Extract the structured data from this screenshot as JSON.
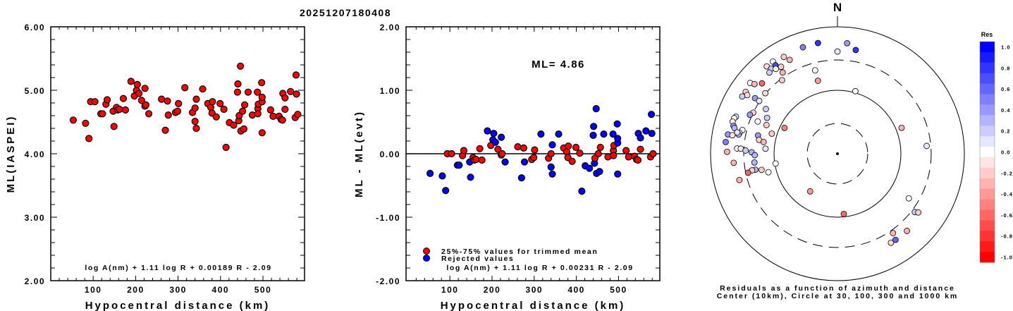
{
  "title": "20251207180408",
  "chart_data": [
    {
      "type": "scatter",
      "panel": "magnitude-vs-distance",
      "xlabel": "Hypocentral distance (km)",
      "ylabel": "ML(IASPEI)",
      "xlim": [
        0,
        598
      ],
      "ylim": [
        2,
        6
      ],
      "xticks": [
        100,
        200,
        300,
        400,
        500
      ],
      "yticks": [
        "2.00",
        "3.00",
        "4.00",
        "5.00",
        "6.00"
      ],
      "formula": "log A(nm) + 1.11 log R + 0.00189 R - 2.09",
      "marker_color": "#ff0000",
      "points": [
        [
          53,
          4.53
        ],
        [
          82,
          4.48
        ],
        [
          90,
          4.24
        ],
        [
          94,
          4.82
        ],
        [
          104,
          4.82
        ],
        [
          118,
          4.63
        ],
        [
          122,
          4.63
        ],
        [
          130,
          4.78
        ],
        [
          133,
          4.85
        ],
        [
          147,
          4.67
        ],
        [
          149,
          4.43
        ],
        [
          155,
          4.73
        ],
        [
          158,
          4.69
        ],
        [
          162,
          4.7
        ],
        [
          171,
          4.87
        ],
        [
          176,
          4.69
        ],
        [
          189,
          5.14
        ],
        [
          197,
          4.91
        ],
        [
          202,
          5.0
        ],
        [
          204,
          5.09
        ],
        [
          208,
          4.95
        ],
        [
          214,
          4.84
        ],
        [
          222,
          5.03
        ],
        [
          222,
          4.75
        ],
        [
          224,
          4.77
        ],
        [
          231,
          4.63
        ],
        [
          261,
          4.86
        ],
        [
          270,
          4.37
        ],
        [
          275,
          4.83
        ],
        [
          277,
          4.61
        ],
        [
          294,
          4.65
        ],
        [
          299,
          4.67
        ],
        [
          301,
          4.79
        ],
        [
          316,
          5.04
        ],
        [
          334,
          4.65
        ],
        [
          340,
          4.72
        ],
        [
          340,
          4.51
        ],
        [
          343,
          4.86
        ],
        [
          343,
          4.4
        ],
        [
          358,
          5.02
        ],
        [
          370,
          4.79
        ],
        [
          377,
          4.73
        ],
        [
          381,
          4.82
        ],
        [
          380,
          4.64
        ],
        [
          390,
          4.58
        ],
        [
          399,
          4.79
        ],
        [
          408,
          4.7
        ],
        [
          413,
          4.1
        ],
        [
          421,
          4.49
        ],
        [
          431,
          4.45
        ],
        [
          440,
          4.97
        ],
        [
          441,
          5.1
        ],
        [
          443,
          4.52
        ],
        [
          444,
          4.6
        ],
        [
          447,
          5.38
        ],
        [
          448,
          4.36
        ],
        [
          452,
          4.67
        ],
        [
          455,
          4.39
        ],
        [
          457,
          4.77
        ],
        [
          465,
          4.97
        ],
        [
          475,
          4.61
        ],
        [
          487,
          4.97
        ],
        [
          488,
          4.71
        ],
        [
          489,
          4.78
        ],
        [
          488,
          4.63
        ],
        [
          497,
          5.12
        ],
        [
          498,
          4.82
        ],
        [
          498,
          4.89
        ],
        [
          498,
          4.33
        ],
        [
          518,
          4.69
        ],
        [
          524,
          4.59
        ],
        [
          538,
          4.59
        ],
        [
          543,
          4.54
        ],
        [
          546,
          4.53
        ],
        [
          547,
          4.95
        ],
        [
          552,
          4.7
        ],
        [
          552,
          4.88
        ],
        [
          565,
          4.98
        ],
        [
          576,
          4.57
        ],
        [
          578,
          5.24
        ],
        [
          579,
          4.94
        ],
        [
          582,
          4.62
        ]
      ]
    },
    {
      "type": "scatter",
      "panel": "residual-vs-distance",
      "xlabel": "Hypocentral distance (km)",
      "ylabel": "ML - ML(evt)",
      "xlim": [
        -4,
        598
      ],
      "ylim": [
        -2,
        2
      ],
      "xticks": [
        100,
        200,
        300,
        400,
        500
      ],
      "yticks": [
        "-2.00",
        "-1.00",
        "0.00",
        "1.00",
        "2.00"
      ],
      "annotation": "ML= 4.86",
      "formula": "log A(nm) + 1.11 log R + 0.00231 R - 2.09",
      "legend": [
        {
          "label": "25%-75% values for trimmed mean",
          "color": "#ff0000"
        },
        {
          "label": "Rejected values",
          "color": "#0000ff"
        }
      ],
      "legend_position": "bottom-left",
      "points_note": "[distance_km, residual, rejected(1) or used(0)]",
      "points": [
        [
          53,
          -0.31,
          1
        ],
        [
          82,
          -0.35,
          1
        ],
        [
          90,
          -0.58,
          1
        ],
        [
          94,
          0.0,
          0
        ],
        [
          104,
          0.0,
          0
        ],
        [
          118,
          -0.18,
          1
        ],
        [
          122,
          -0.18,
          1
        ],
        [
          130,
          -0.03,
          0
        ],
        [
          133,
          0.05,
          0
        ],
        [
          147,
          -0.13,
          1
        ],
        [
          149,
          -0.37,
          1
        ],
        [
          155,
          -0.06,
          0
        ],
        [
          158,
          -0.1,
          0
        ],
        [
          162,
          -0.09,
          0
        ],
        [
          171,
          0.08,
          0
        ],
        [
          176,
          -0.1,
          0
        ],
        [
          189,
          0.36,
          1
        ],
        [
          197,
          0.13,
          0
        ],
        [
          202,
          0.22,
          1
        ],
        [
          204,
          0.32,
          1
        ],
        [
          208,
          0.18,
          1
        ],
        [
          214,
          0.07,
          0
        ],
        [
          222,
          0.26,
          1
        ],
        [
          222,
          -0.02,
          0
        ],
        [
          224,
          0.0,
          0
        ],
        [
          231,
          -0.13,
          1
        ],
        [
          261,
          0.11,
          0
        ],
        [
          270,
          -0.38,
          1
        ],
        [
          275,
          0.09,
          0
        ],
        [
          277,
          -0.13,
          1
        ],
        [
          294,
          -0.09,
          0
        ],
        [
          299,
          -0.06,
          0
        ],
        [
          301,
          0.06,
          0
        ],
        [
          316,
          0.31,
          1
        ],
        [
          334,
          -0.07,
          0
        ],
        [
          340,
          0.0,
          0
        ],
        [
          340,
          -0.21,
          1
        ],
        [
          343,
          0.14,
          1
        ],
        [
          343,
          -0.32,
          1
        ],
        [
          358,
          0.31,
          1
        ],
        [
          370,
          0.09,
          0
        ],
        [
          377,
          0.03,
          0
        ],
        [
          381,
          0.12,
          0
        ],
        [
          380,
          -0.06,
          0
        ],
        [
          390,
          -0.12,
          0
        ],
        [
          399,
          0.1,
          0
        ],
        [
          408,
          0.01,
          0
        ],
        [
          413,
          -0.59,
          1
        ],
        [
          421,
          -0.19,
          1
        ],
        [
          431,
          -0.23,
          1
        ],
        [
          440,
          0.29,
          1
        ],
        [
          441,
          0.43,
          1
        ],
        [
          443,
          -0.15,
          1
        ],
        [
          444,
          -0.07,
          0
        ],
        [
          447,
          0.71,
          1
        ],
        [
          448,
          -0.31,
          1
        ],
        [
          452,
          0.0,
          0
        ],
        [
          455,
          -0.28,
          1
        ],
        [
          457,
          0.1,
          0
        ],
        [
          465,
          0.31,
          1
        ],
        [
          475,
          -0.05,
          0
        ],
        [
          487,
          0.31,
          1
        ],
        [
          488,
          0.05,
          0
        ],
        [
          489,
          0.13,
          0
        ],
        [
          488,
          -0.03,
          0
        ],
        [
          497,
          0.47,
          1
        ],
        [
          498,
          0.17,
          1
        ],
        [
          498,
          0.24,
          1
        ],
        [
          498,
          -0.32,
          1
        ],
        [
          518,
          0.05,
          0
        ],
        [
          524,
          -0.05,
          0
        ],
        [
          538,
          -0.04,
          0
        ],
        [
          543,
          -0.09,
          0
        ],
        [
          546,
          -0.1,
          0
        ],
        [
          547,
          0.32,
          1
        ],
        [
          552,
          0.07,
          0
        ],
        [
          552,
          0.25,
          1
        ],
        [
          565,
          0.36,
          1
        ],
        [
          576,
          -0.05,
          0
        ],
        [
          578,
          0.62,
          1
        ],
        [
          579,
          0.32,
          1
        ],
        [
          582,
          0.0,
          0
        ]
      ]
    },
    {
      "type": "scatter",
      "panel": "residual-azimuth-polar",
      "north_label": "N",
      "caption_line1": "Residuals as a function of azimuth and distance",
      "caption_line2": "Center (10km), Circle at 30, 100, 300 and 1000 km",
      "center_km": 10,
      "circles_km": [
        30,
        100,
        300,
        1000
      ],
      "colorbar": {
        "title": "Res",
        "range": [
          -1.0,
          1.0
        ],
        "labels": [
          "1.0",
          "0.8",
          "0.6",
          "0.4",
          "0.2",
          "0.0",
          "-0.2",
          "-0.4",
          "-0.6",
          "-0.8",
          "-1.0"
        ],
        "positive_color": "#0000ff",
        "negative_color": "#ff0000"
      },
      "points_note": "[azimuth_deg, distance_km, residual]",
      "points": [
        [
          342,
          580,
          0.5
        ],
        [
          350,
          590,
          0.8
        ],
        [
          0,
          408,
          0.1
        ],
        [
          5,
          560,
          0.4
        ],
        [
          10,
          457,
          0.8
        ],
        [
          331,
          555,
          -0.2
        ],
        [
          333,
          457,
          -0.3
        ],
        [
          325,
          593,
          0
        ],
        [
          325,
          505,
          0.7
        ],
        [
          321,
          590,
          -0.15
        ],
        [
          322,
          500,
          0.2
        ],
        [
          324,
          450,
          0
        ],
        [
          327,
          430,
          -0.2
        ],
        [
          320,
          468,
          0.2
        ],
        [
          326,
          350,
          -0.3
        ],
        [
          323,
          283,
          -0.2
        ],
        [
          345,
          229,
          0
        ],
        [
          345,
          155,
          -0.4
        ],
        [
          309,
          590,
          0
        ],
        [
          310,
          510,
          -0.3
        ],
        [
          313,
          423,
          -0.6
        ],
        [
          304,
          555,
          -0.2
        ],
        [
          303,
          497,
          -0.15
        ],
        [
          301,
          565,
          0.2
        ],
        [
          304,
          369,
          0.4
        ],
        [
          304,
          308,
          0.1
        ],
        [
          310,
          305,
          -0.15
        ],
        [
          302,
          214,
          0.2
        ],
        [
          296,
          300,
          -0.2
        ],
        [
          294,
          324,
          0.4
        ],
        [
          297,
          176,
          0.2
        ],
        [
          292,
          227,
          0
        ],
        [
          292,
          161,
          -0.2
        ],
        [
          290,
          505,
          0.1
        ],
        [
          289,
          527,
          0
        ],
        [
          287,
          535,
          -0.1
        ],
        [
          285,
          497,
          0.4
        ],
        [
          284,
          472,
          0.3
        ],
        [
          284,
          350,
          0
        ],
        [
          282,
          378,
          0.1
        ],
        [
          280,
          565,
          0.4
        ],
        [
          280,
          480,
          -0.1
        ],
        [
          281,
          387,
          0.3
        ],
        [
          282,
          412,
          0.1
        ],
        [
          283,
          193,
          0.4
        ],
        [
          287,
          121,
          -0.2
        ],
        [
          280,
          180,
          -0.2
        ],
        [
          279,
          151,
          -0.3
        ],
        [
          276,
          590,
          0.5
        ],
        [
          274,
          137,
          0.1
        ],
        [
          273,
          383,
          0
        ],
        [
          273,
          336,
          -0.1
        ],
        [
          272,
          281,
          0.2
        ],
        [
          271,
          225,
          0.3
        ],
        [
          269,
          201,
          0.3
        ],
        [
          271,
          550,
          -0.3
        ],
        [
          265,
          438,
          -0.3
        ],
        [
          264,
          207,
          0.3
        ],
        [
          261,
          97,
          0
        ],
        [
          259,
          208,
          0.3
        ],
        [
          259,
          235,
          -0.2
        ],
        [
          258,
          276,
          -0.6
        ],
        [
          258,
          167,
          -0.2
        ],
        [
          255,
          134,
          0
        ],
        [
          255,
          398,
          -0.3
        ],
        [
          296,
          85,
          -0.5
        ],
        [
          16,
          106,
          0
        ],
        [
          68,
          123,
          -0.3
        ],
        [
          85,
          258,
          0.1
        ],
        [
          216,
          54,
          -0.4
        ],
        [
          174,
          90,
          -0.6
        ],
        [
          122,
          212,
          0
        ],
        [
          127,
          336,
          0.2
        ],
        [
          126,
          375,
          -0.2
        ],
        [
          138,
          433,
          -0.3
        ],
        [
          145,
          336,
          -0.3
        ],
        [
          149,
          433,
          -0.15
        ],
        [
          146,
          433,
          0.6
        ]
      ]
    }
  ]
}
